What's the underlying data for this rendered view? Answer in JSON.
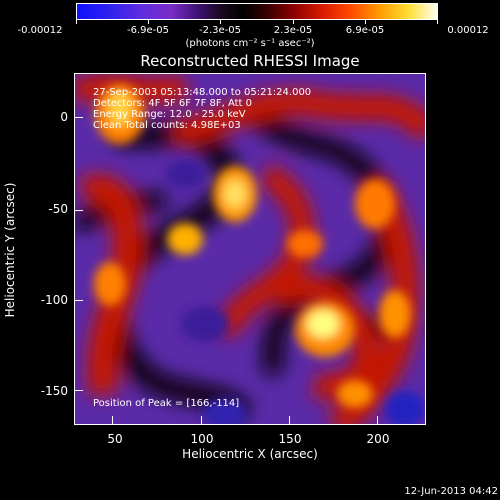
{
  "colorbar": {
    "labels": [
      "-0.00012",
      "-6.9e-05",
      "-2.3e-05",
      "2.3e-05",
      "6.9e-05",
      "0.00012"
    ],
    "unit": "(photons cm⁻² s⁻¹ asec⁻²)"
  },
  "title": "Reconstructed RHESSI Image",
  "info": {
    "line1": "27-Sep-2003 05:13:48.000 to 05:21:24.000",
    "line2": "Detectors: 4F 5F 6F 7F 8F, Att 0",
    "line3": "Energy Range: 12.0 - 25.0 keV",
    "line4": "Clean    Total counts: 4.98E+03"
  },
  "peak": "Position of Peak = [166,-114]",
  "axes": {
    "xlabel": "Heliocentric X (arcsec)",
    "ylabel": "Heliocentric Y (arcsec)",
    "xticks": [
      "50",
      "100",
      "150",
      "200"
    ],
    "yticks": [
      "0",
      "-50",
      "-100",
      "-150"
    ]
  },
  "date": "12-Jun-2013 04:42"
}
